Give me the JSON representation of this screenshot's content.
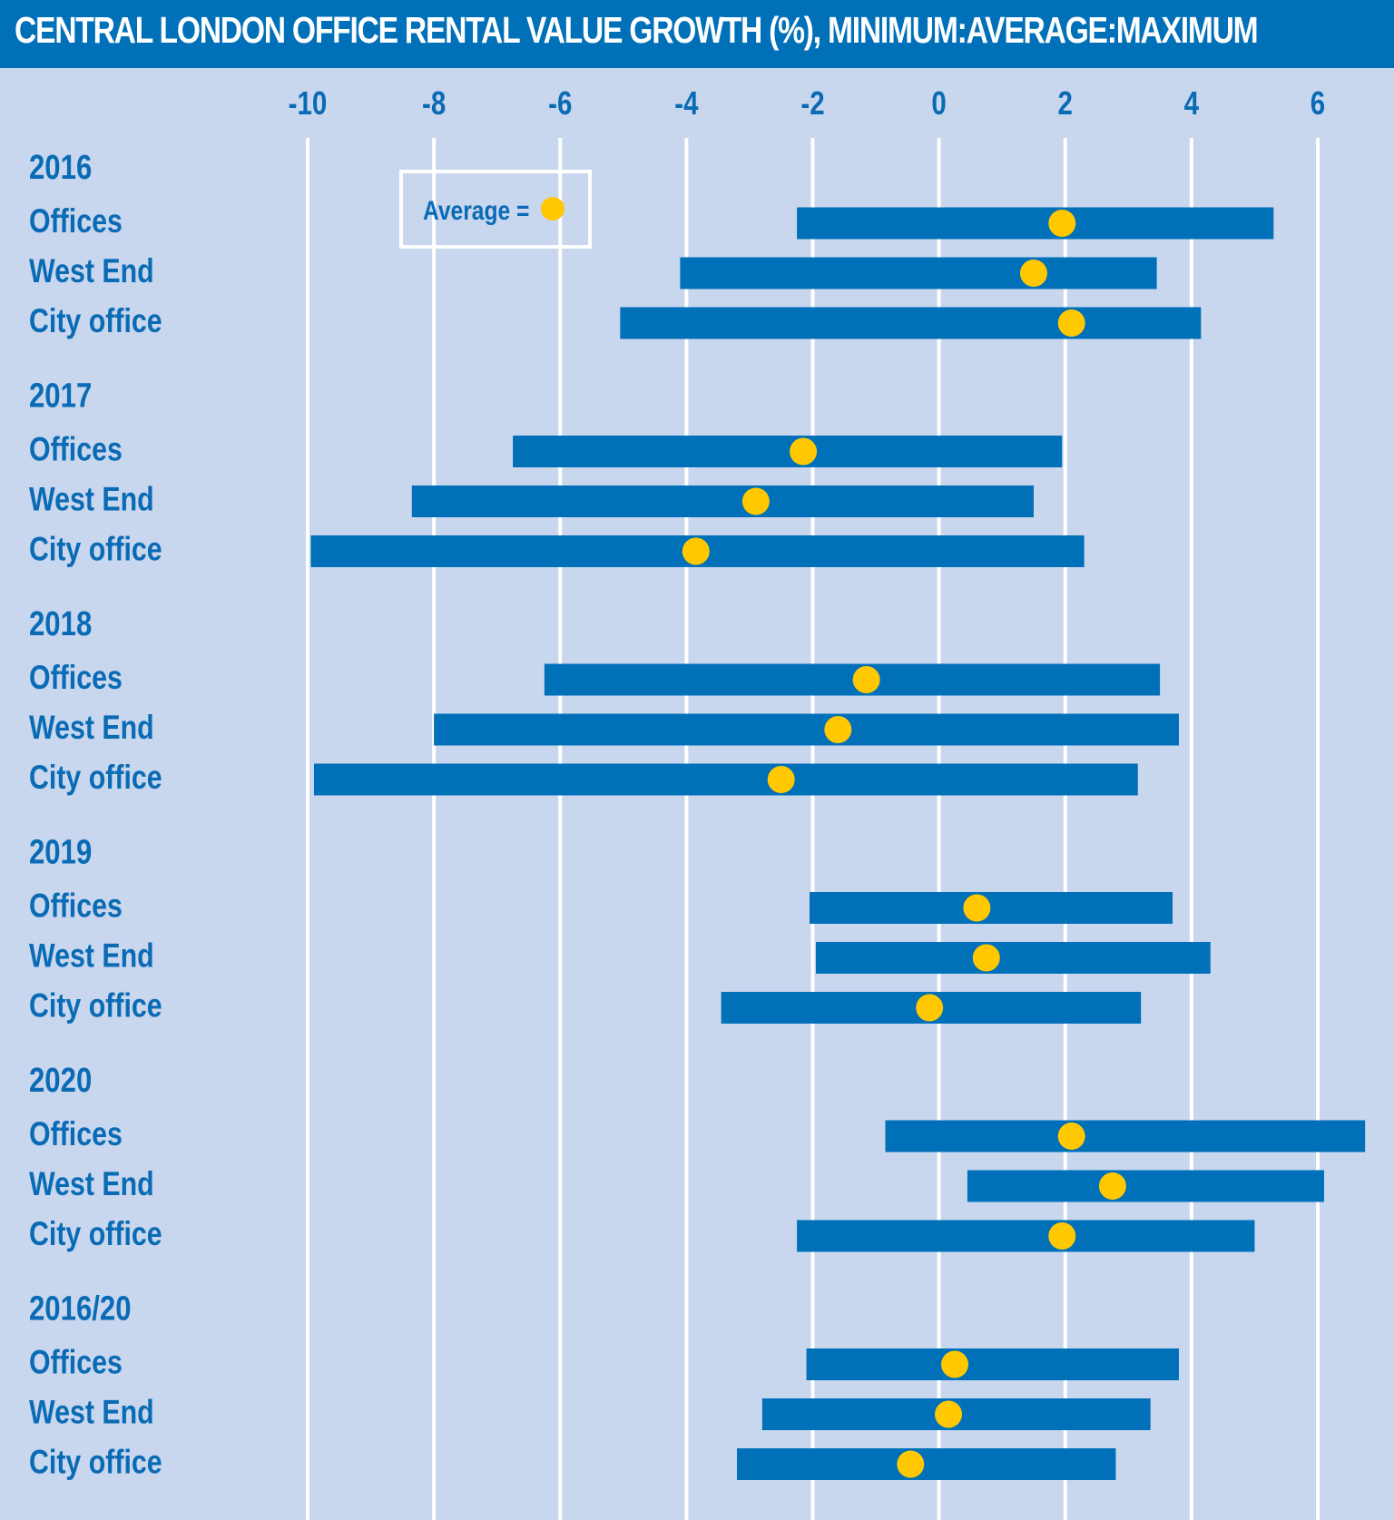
{
  "title": "CENTRAL LONDON OFFICE RENTAL VALUE GROWTH (%), MINIMUM:AVERAGE:MAXIMUM",
  "colors": {
    "background": "#c8d6ee",
    "header": "#0070b8",
    "bar": "#0070b8",
    "average_dot": "#ffc800",
    "gridline": "#ffffff",
    "text": "#0a6bb5"
  },
  "legend": {
    "label": "Average ="
  },
  "chart_data": {
    "type": "range-bar",
    "title": "CENTRAL LONDON OFFICE RENTAL VALUE GROWTH (%), MINIMUM:AVERAGE:MAXIMUM",
    "xlim": [
      -10,
      6
    ],
    "xticks": [
      -10,
      -8,
      -6,
      -4,
      -2,
      0,
      2,
      4,
      6
    ],
    "xtick_labels": [
      "-10",
      "-8",
      "-6",
      "-4",
      "-2",
      "0",
      "2",
      "4",
      "6"
    ],
    "grid": "vertical",
    "legend": "top-left",
    "groups": [
      {
        "label": "2016",
        "rows": [
          {
            "label": "Offices",
            "min": -2.25,
            "avg": 1.95,
            "max": 5.3
          },
          {
            "label": "West End",
            "min": -4.1,
            "avg": 1.5,
            "max": 3.45
          },
          {
            "label": "City office",
            "min": -5.05,
            "avg": 2.1,
            "max": 4.15
          }
        ]
      },
      {
        "label": "2017",
        "rows": [
          {
            "label": "Offices",
            "min": -6.75,
            "avg": -2.15,
            "max": 1.95
          },
          {
            "label": "West End",
            "min": -8.35,
            "avg": -2.9,
            "max": 1.5
          },
          {
            "label": "City office",
            "min": -9.95,
            "avg": -3.85,
            "max": 2.3
          }
        ]
      },
      {
        "label": "2018",
        "rows": [
          {
            "label": "Offices",
            "min": -6.25,
            "avg": -1.15,
            "max": 3.5
          },
          {
            "label": "West End",
            "min": -8.0,
            "avg": -1.6,
            "max": 3.8
          },
          {
            "label": "City office",
            "min": -9.9,
            "avg": -2.5,
            "max": 3.15
          }
        ]
      },
      {
        "label": "2019",
        "rows": [
          {
            "label": "Offices",
            "min": -2.05,
            "avg": 0.6,
            "max": 3.7
          },
          {
            "label": "West End",
            "min": -1.95,
            "avg": 0.75,
            "max": 4.3
          },
          {
            "label": "City office",
            "min": -3.45,
            "avg": -0.15,
            "max": 3.2
          }
        ]
      },
      {
        "label": "2020",
        "rows": [
          {
            "label": "Offices",
            "min": -0.85,
            "avg": 2.1,
            "max": 6.75
          },
          {
            "label": "West End",
            "min": 0.45,
            "avg": 2.75,
            "max": 6.1
          },
          {
            "label": "City office",
            "min": -2.25,
            "avg": 1.95,
            "max": 5.0
          }
        ]
      },
      {
        "label": "2016/20",
        "rows": [
          {
            "label": "Offices",
            "min": -2.1,
            "avg": 0.25,
            "max": 3.8
          },
          {
            "label": "West End",
            "min": -2.8,
            "avg": 0.15,
            "max": 3.35
          },
          {
            "label": "City office",
            "min": -3.2,
            "avg": -0.45,
            "max": 2.8
          }
        ]
      }
    ]
  }
}
